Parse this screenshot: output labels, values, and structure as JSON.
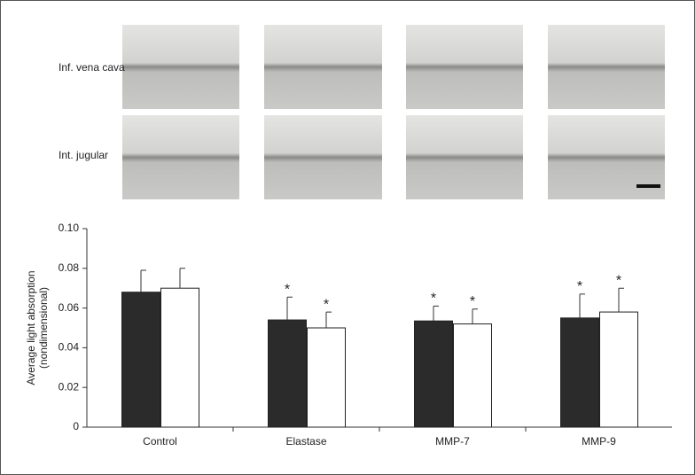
{
  "image_panel": {
    "row_labels": [
      "Inf. vena cava",
      "Int. jugular"
    ]
  },
  "chart_data": {
    "type": "bar",
    "ylabel": "Average light absorption",
    "ylabel_note": "(nondimensional)",
    "categories": [
      "Control",
      "Elastase",
      "MMP-7",
      "MMP-9"
    ],
    "series": [
      {
        "color": "#2b2b2b",
        "values": [
          0.068,
          0.054,
          0.0535,
          0.055
        ],
        "errors": [
          0.011,
          0.0115,
          0.0075,
          0.012
        ],
        "significance": [
          null,
          "*",
          "*",
          "*"
        ]
      },
      {
        "color": "#ffffff",
        "values": [
          0.07,
          0.05,
          0.052,
          0.058
        ],
        "errors": [
          0.01,
          0.008,
          0.0075,
          0.012
        ],
        "significance": [
          null,
          "*",
          "*",
          "*"
        ]
      }
    ],
    "ylim": [
      0,
      0.1
    ],
    "yticks": [
      0,
      0.02,
      0.04,
      0.06,
      0.08,
      {
        "value": 0.1,
        "label": "0.10"
      }
    ]
  }
}
